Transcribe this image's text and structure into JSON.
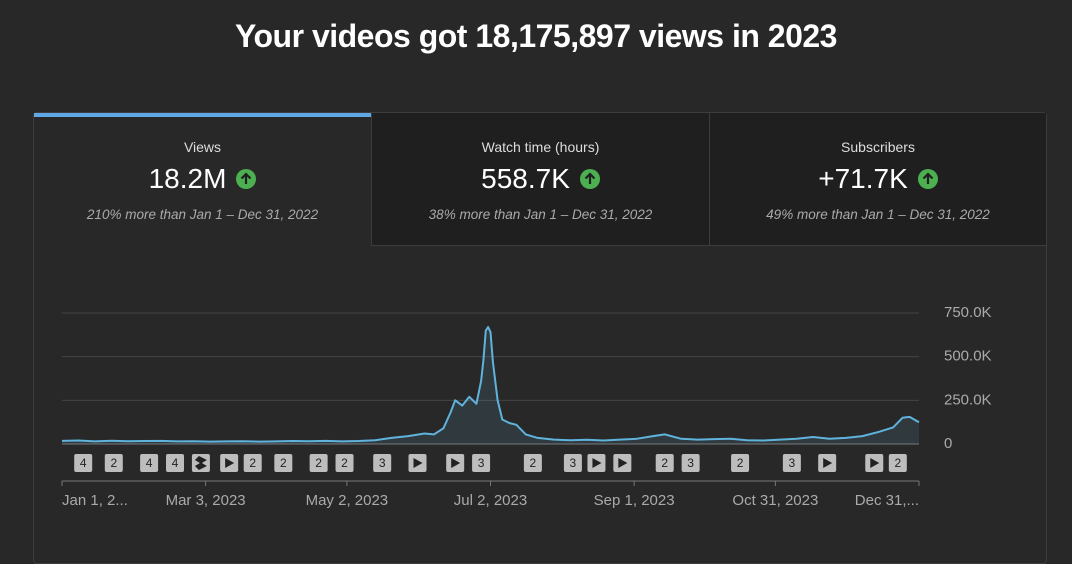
{
  "header": {
    "title": "Your videos got 18,175,897 views in 2023"
  },
  "cards": [
    {
      "label": "Views",
      "value": "18.2M",
      "comparison": "210% more than Jan 1 – Dec 31, 2022"
    },
    {
      "label": "Watch time (hours)",
      "value": "558.7K",
      "comparison": "38% more than Jan 1 – Dec 31, 2022"
    },
    {
      "label": "Subscribers",
      "value": "+71.7K",
      "comparison": "49% more than Jan 1 – Dec 31, 2022"
    }
  ],
  "chart_data": {
    "type": "line",
    "color": "#5fb3dd",
    "grid": true,
    "x": [
      "2023-01-01",
      "2023-01-08",
      "2023-01-15",
      "2023-01-22",
      "2023-01-29",
      "2023-02-05",
      "2023-02-12",
      "2023-02-19",
      "2023-02-26",
      "2023-03-05",
      "2023-03-12",
      "2023-03-19",
      "2023-03-26",
      "2023-04-02",
      "2023-04-09",
      "2023-04-16",
      "2023-04-23",
      "2023-04-30",
      "2023-05-07",
      "2023-05-14",
      "2023-05-21",
      "2023-05-28",
      "2023-06-04",
      "2023-06-08",
      "2023-06-12",
      "2023-06-15",
      "2023-06-17",
      "2023-06-20",
      "2023-06-23",
      "2023-06-26",
      "2023-06-28",
      "2023-06-29",
      "2023-06-30",
      "2023-07-01",
      "2023-07-02",
      "2023-07-03",
      "2023-07-05",
      "2023-07-07",
      "2023-07-10",
      "2023-07-13",
      "2023-07-17",
      "2023-07-22",
      "2023-07-29",
      "2023-08-05",
      "2023-08-12",
      "2023-08-19",
      "2023-08-26",
      "2023-09-02",
      "2023-09-09",
      "2023-09-14",
      "2023-09-21",
      "2023-09-28",
      "2023-10-05",
      "2023-10-12",
      "2023-10-19",
      "2023-10-26",
      "2023-11-02",
      "2023-11-09",
      "2023-11-16",
      "2023-11-23",
      "2023-11-30",
      "2023-12-07",
      "2023-12-14",
      "2023-12-20",
      "2023-12-24",
      "2023-12-27",
      "2023-12-31"
    ],
    "values": [
      18000,
      20000,
      15000,
      19000,
      16000,
      17000,
      18000,
      15000,
      16000,
      14000,
      15000,
      16000,
      14000,
      15000,
      17000,
      16000,
      18000,
      15000,
      17000,
      22000,
      35000,
      45000,
      60000,
      55000,
      90000,
      180000,
      250000,
      220000,
      270000,
      230000,
      360000,
      480000,
      650000,
      670000,
      640000,
      470000,
      250000,
      140000,
      120000,
      110000,
      55000,
      35000,
      25000,
      22000,
      24000,
      20000,
      25000,
      30000,
      45000,
      55000,
      30000,
      25000,
      28000,
      30000,
      22000,
      20000,
      25000,
      30000,
      40000,
      30000,
      35000,
      45000,
      70000,
      95000,
      150000,
      155000,
      125000
    ],
    "xlim": [
      "2023-01-01",
      "2023-12-31"
    ],
    "xticks": [
      {
        "value": "2023-01-01",
        "label": "Jan 1, 2..."
      },
      {
        "value": "2023-03-03",
        "label": "Mar 3, 2023"
      },
      {
        "value": "2023-05-02",
        "label": "May 2, 2023"
      },
      {
        "value": "2023-07-02",
        "label": "Jul 2, 2023"
      },
      {
        "value": "2023-09-01",
        "label": "Sep 1, 2023"
      },
      {
        "value": "2023-10-31",
        "label": "Oct 31, 2023"
      },
      {
        "value": "2023-12-31",
        "label": "Dec 31,..."
      }
    ],
    "ylim": [
      0,
      750000
    ],
    "yticks": [
      0,
      {
        "value": 250000,
        "label": "250.0K"
      },
      {
        "value": 500000,
        "label": "500.0K"
      },
      {
        "value": 750000,
        "label": "750.0K"
      }
    ],
    "markers": [
      {
        "x": "2023-01-10",
        "label": "4"
      },
      {
        "x": "2023-01-23",
        "label": "2"
      },
      {
        "x": "2023-02-07",
        "label": "4"
      },
      {
        "x": "2023-02-18",
        "label": "4"
      },
      {
        "x": "2023-03-01",
        "icon": "shorts"
      },
      {
        "x": "2023-03-13",
        "icon": "play"
      },
      {
        "x": "2023-03-23",
        "label": "2"
      },
      {
        "x": "2023-04-05",
        "label": "2"
      },
      {
        "x": "2023-04-20",
        "label": "2"
      },
      {
        "x": "2023-05-01",
        "label": "2"
      },
      {
        "x": "2023-05-17",
        "label": "3"
      },
      {
        "x": "2023-06-01",
        "icon": "play"
      },
      {
        "x": "2023-06-17",
        "icon": "play"
      },
      {
        "x": "2023-06-28",
        "label": "3"
      },
      {
        "x": "2023-07-20",
        "label": "2"
      },
      {
        "x": "2023-08-06",
        "label": "3"
      },
      {
        "x": "2023-08-16",
        "icon": "play"
      },
      {
        "x": "2023-08-27",
        "icon": "play"
      },
      {
        "x": "2023-09-14",
        "label": "2"
      },
      {
        "x": "2023-09-25",
        "label": "3"
      },
      {
        "x": "2023-10-16",
        "label": "2"
      },
      {
        "x": "2023-11-07",
        "label": "3"
      },
      {
        "x": "2023-11-22",
        "icon": "play"
      },
      {
        "x": "2023-12-12",
        "icon": "play"
      },
      {
        "x": "2023-12-22",
        "label": "2"
      }
    ]
  }
}
